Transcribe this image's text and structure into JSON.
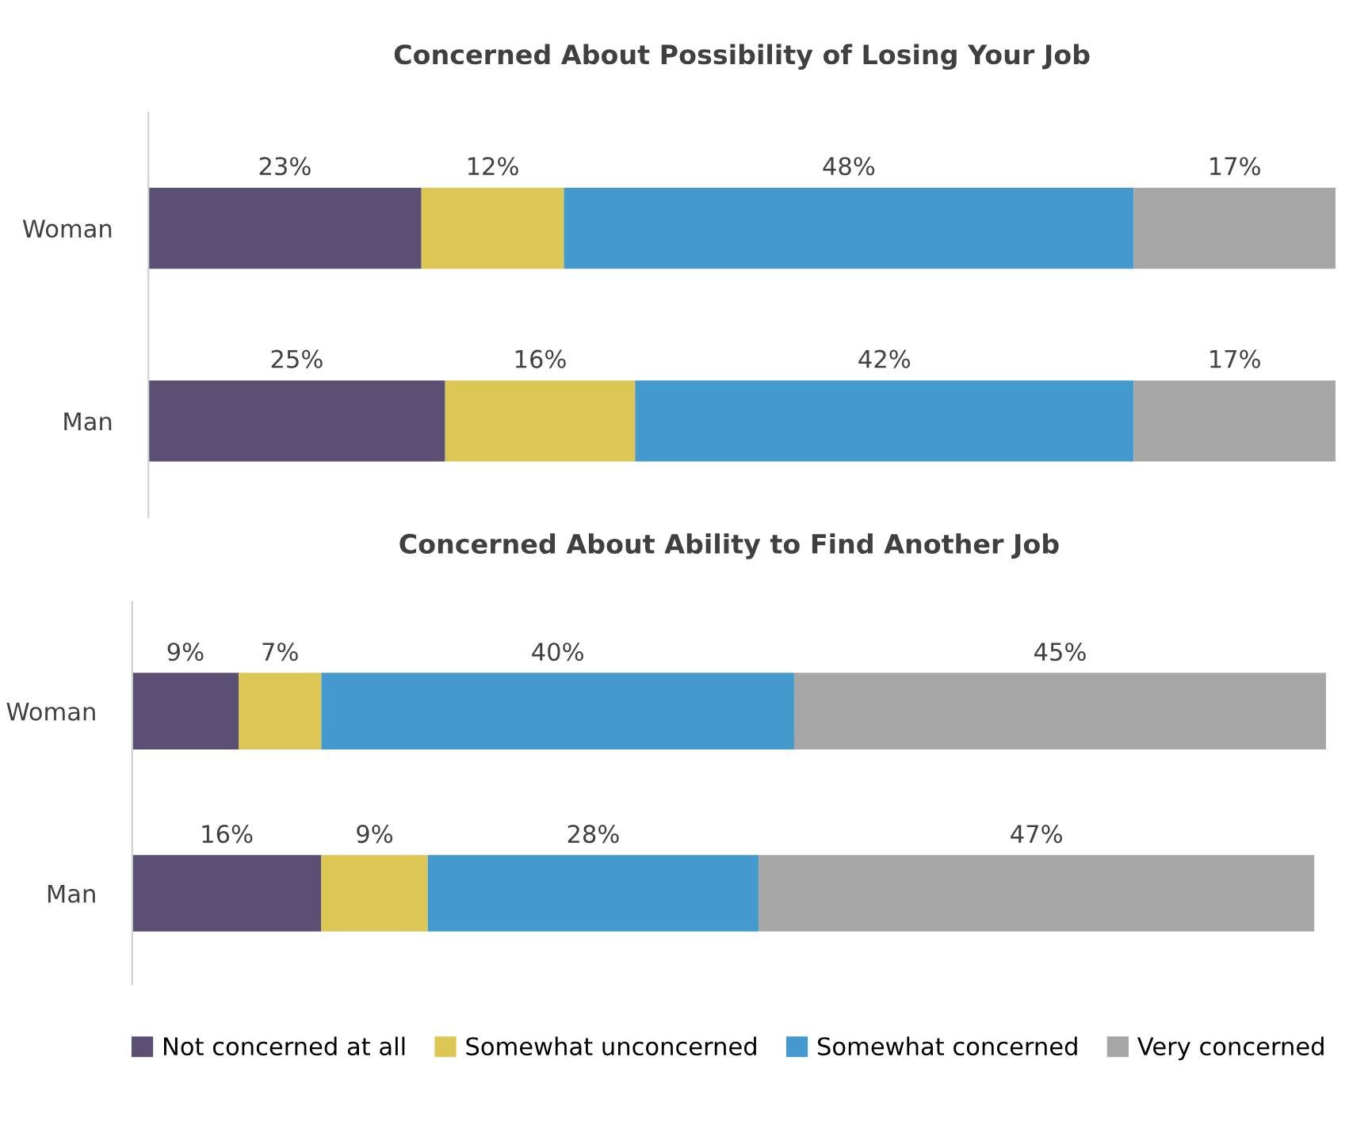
{
  "chart_data": [
    {
      "type": "bar",
      "orientation": "horizontal",
      "stacked": true,
      "title": "Concerned About Possibility of Losing Your Job",
      "categories": [
        "Woman",
        "Man"
      ],
      "series": [
        {
          "color": "#5b5073",
          "values": [
            23,
            25
          ],
          "value_labels": [
            "23%",
            "25%"
          ]
        },
        {
          "color": "#dcc654",
          "values": [
            12,
            16
          ],
          "value_labels": [
            "12%",
            "16%"
          ]
        },
        {
          "color": "#4499cf",
          "values": [
            48,
            42
          ],
          "value_labels": [
            "48%",
            "42%"
          ]
        },
        {
          "color": "#a6a6a6",
          "values": [
            17,
            17
          ],
          "value_labels": [
            "17%",
            "17%"
          ]
        }
      ]
    },
    {
      "type": "bar",
      "orientation": "horizontal",
      "stacked": true,
      "legend": "bottom",
      "title": "Concerned About Ability to Find Another Job",
      "categories": [
        "Woman",
        "Man"
      ],
      "series": [
        {
          "name": "Not concerned at all",
          "color": "#5b5073",
          "values": [
            9,
            16
          ],
          "value_labels": [
            "9%",
            "16%"
          ]
        },
        {
          "name": "Somewhat unconcerned",
          "color": "#dcc654",
          "values": [
            7,
            9
          ],
          "value_labels": [
            "7%",
            "9%"
          ]
        },
        {
          "name": "Somewhat concerned",
          "color": "#4499cf",
          "values": [
            40,
            28
          ],
          "value_labels": [
            "40%",
            "28%"
          ]
        },
        {
          "name": "Very concerned",
          "color": "#a6a6a6",
          "values": [
            45,
            47
          ],
          "value_labels": [
            "45%",
            "47%"
          ]
        }
      ]
    }
  ]
}
